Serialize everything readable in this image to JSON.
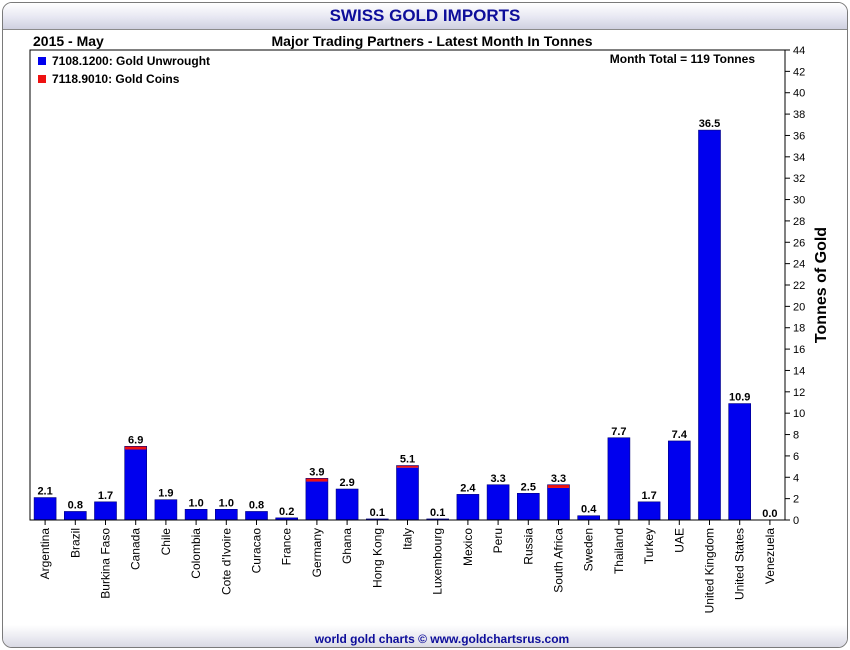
{
  "header": {
    "title": "SWISS GOLD IMPORTS"
  },
  "footer": {
    "credit": "world gold charts © www.goldchartsrus.com"
  },
  "chart_data": {
    "type": "bar",
    "stacked": true,
    "period_label": "2015 - May",
    "title": "Major Trading Partners - Latest Month In Tonnes",
    "annotation": "Month Total = 119 Tonnes",
    "xlabel": "",
    "ylabel": "Tonnes of Gold",
    "ylim": [
      0,
      44
    ],
    "ytick_step": 2,
    "grid": false,
    "legend_position": "top-left",
    "categories": [
      "Argentina",
      "Brazil",
      "Burkina Faso",
      "Canada",
      "Chile",
      "Colombia",
      "Cote d'Ivoire",
      "Curacao",
      "France",
      "Germany",
      "Ghana",
      "Hong Kong",
      "Italy",
      "Luxembourg",
      "Mexico",
      "Peru",
      "Russia",
      "South Africa",
      "Sweden",
      "Thailand",
      "Turkey",
      "UAE",
      "United Kingdom",
      "United States",
      "Venezuela"
    ],
    "totals": [
      "2.1",
      "0.8",
      "1.7",
      "6.9",
      "1.9",
      "1.0",
      "1.0",
      "0.8",
      "0.2",
      "3.9",
      "2.9",
      "0.1",
      "5.1",
      "0.1",
      "2.4",
      "3.3",
      "2.5",
      "3.3",
      "0.4",
      "7.7",
      "1.7",
      "7.4",
      "36.5",
      "10.9",
      "0.0"
    ],
    "series": [
      {
        "name": "7108.1200: Gold Unwrought",
        "color": "#0000ee",
        "values": [
          2.1,
          0.8,
          1.7,
          6.6,
          1.9,
          1.0,
          1.0,
          0.8,
          0.2,
          3.6,
          2.9,
          0.1,
          4.9,
          0.1,
          2.4,
          3.3,
          2.5,
          3.0,
          0.4,
          7.7,
          1.7,
          7.4,
          36.5,
          10.9,
          0.0
        ]
      },
      {
        "name": "7118.9010: Gold Coins",
        "color": "#ee1111",
        "values": [
          0,
          0,
          0,
          0.3,
          0,
          0,
          0,
          0,
          0,
          0.3,
          0,
          0,
          0.2,
          0,
          0,
          0,
          0,
          0.3,
          0,
          0,
          0,
          0,
          0,
          0,
          0
        ]
      }
    ]
  }
}
